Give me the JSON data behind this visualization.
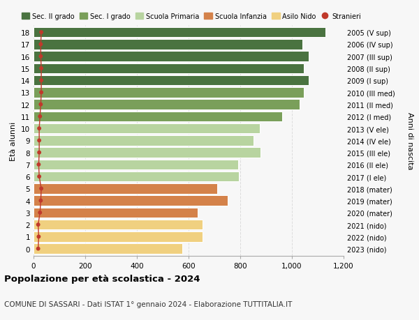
{
  "ages": [
    18,
    17,
    16,
    15,
    14,
    13,
    12,
    11,
    10,
    9,
    8,
    7,
    6,
    5,
    4,
    3,
    2,
    1,
    0
  ],
  "right_labels": [
    "2005 (V sup)",
    "2006 (IV sup)",
    "2007 (III sup)",
    "2008 (II sup)",
    "2009 (I sup)",
    "2010 (III med)",
    "2011 (II med)",
    "2012 (I med)",
    "2013 (V ele)",
    "2014 (IV ele)",
    "2015 (III ele)",
    "2016 (II ele)",
    "2017 (I ele)",
    "2018 (mater)",
    "2019 (mater)",
    "2020 (mater)",
    "2021 (nido)",
    "2022 (nido)",
    "2023 (nido)"
  ],
  "bar_values": [
    1130,
    1040,
    1065,
    1047,
    1065,
    1047,
    1030,
    962,
    875,
    852,
    878,
    793,
    795,
    710,
    750,
    635,
    653,
    653,
    575
  ],
  "stranieri_values": [
    30,
    28,
    28,
    30,
    30,
    30,
    28,
    25,
    22,
    22,
    22,
    20,
    22,
    30,
    28,
    25,
    18,
    20,
    18
  ],
  "bar_colors": [
    "#4a7340",
    "#4a7340",
    "#4a7340",
    "#4a7340",
    "#4a7340",
    "#7a9f5a",
    "#7a9f5a",
    "#7a9f5a",
    "#b8d4a0",
    "#b8d4a0",
    "#b8d4a0",
    "#b8d4a0",
    "#b8d4a0",
    "#d4824a",
    "#d4824a",
    "#d4824a",
    "#f0d080",
    "#f0d080",
    "#f0d080"
  ],
  "legend_labels": [
    "Sec. II grado",
    "Sec. I grado",
    "Scuola Primaria",
    "Scuola Infanzia",
    "Asilo Nido",
    "Stranieri"
  ],
  "legend_colors": [
    "#4a7340",
    "#7a9f5a",
    "#b8d4a0",
    "#d4824a",
    "#f0d080",
    "#c0392b"
  ],
  "title": "Popolazione per età scolastica - 2024",
  "subtitle": "COMUNE DI SASSARI - Dati ISTAT 1° gennaio 2024 - Elaborazione TUTTITALIA.IT",
  "ylabel": "Età alunni",
  "right_ylabel": "Anni di nascita",
  "xlim": [
    0,
    1200
  ],
  "xticks": [
    0,
    200,
    400,
    600,
    800,
    1000,
    1200
  ],
  "xtick_labels": [
    "0",
    "200",
    "400",
    "600",
    "800",
    "1,000",
    "1,200"
  ],
  "bg_color": "#f7f7f7",
  "bar_height": 0.85,
  "stranieri_color": "#c0392b",
  "grid_color": "#dddddd"
}
